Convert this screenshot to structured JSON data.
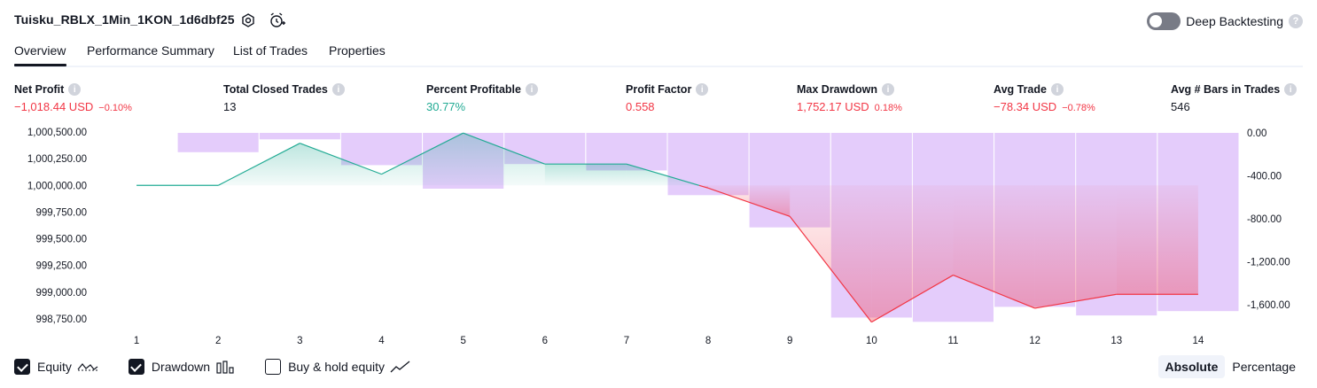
{
  "header": {
    "strategy_name": "Tuisku_RBLX_1Min_1KON_1d6dbf25",
    "deep_backtesting_label": "Deep Backtesting"
  },
  "tabs": [
    {
      "label": "Overview",
      "active": true
    },
    {
      "label": "Performance Summary",
      "active": false
    },
    {
      "label": "List of Trades",
      "active": false
    },
    {
      "label": "Properties",
      "active": false
    }
  ],
  "metrics": [
    {
      "title": "Net Profit",
      "value": "−1,018.44 USD",
      "pct": "−0.10%",
      "tone": "neg"
    },
    {
      "title": "Total Closed Trades",
      "value": "13",
      "pct": "",
      "tone": "neu"
    },
    {
      "title": "Percent Profitable",
      "value": "30.77%",
      "pct": "",
      "tone": "pos"
    },
    {
      "title": "Profit Factor",
      "value": "0.558",
      "pct": "",
      "tone": "neg"
    },
    {
      "title": "Max Drawdown",
      "value": "1,752.17 USD",
      "pct": "0.18%",
      "tone": "neg"
    },
    {
      "title": "Avg Trade",
      "value": "−78.34 USD",
      "pct": "−0.78%",
      "tone": "neg"
    },
    {
      "title": "Avg # Bars in Trades",
      "value": "546",
      "pct": "",
      "tone": "neu"
    }
  ],
  "chart_data": {
    "type": "line",
    "categories": [
      "1",
      "2",
      "3",
      "4",
      "5",
      "6",
      "7",
      "8",
      "9",
      "10",
      "11",
      "12",
      "13",
      "14"
    ],
    "x_range": [
      0.5,
      14.5
    ],
    "y_left": {
      "ticks": [
        1000500,
        1000250,
        1000000,
        999750,
        999500,
        999250,
        999000,
        998750
      ],
      "tick_labels": [
        "1,000,500.00",
        "1,000,250.00",
        "1,000,000.00",
        "999,750.00",
        "999,500.00",
        "999,250.00",
        "999,000.00",
        "998,750.00"
      ],
      "range": [
        998750,
        1000500
      ]
    },
    "y_right": {
      "ticks": [
        0,
        -400,
        -800,
        -1200,
        -1600
      ],
      "tick_labels": [
        "0.00",
        "-400.00",
        "-800.00",
        "-1,200.00",
        "-1,600.00"
      ],
      "range": [
        -1650,
        0
      ]
    },
    "series": [
      {
        "name": "Equity",
        "axis": "left",
        "x": [
          1,
          2,
          3,
          4,
          5,
          6,
          7,
          8,
          9,
          10,
          11,
          12,
          13,
          14
        ],
        "values": [
          1000000,
          1000000,
          1000395,
          1000105,
          1000490,
          1000200,
          1000200,
          999975,
          999710,
          998720,
          999160,
          998850,
          998980,
          998980
        ]
      },
      {
        "name": "Drawdown",
        "axis": "right",
        "type": "bar",
        "x": [
          2,
          3,
          4,
          5,
          6,
          7,
          8,
          9,
          10,
          11,
          12,
          13,
          14
        ],
        "values": [
          -180,
          -60,
          -300,
          -520,
          -290,
          -350,
          -580,
          -880,
          -1720,
          -1760,
          -1620,
          -1700,
          -1660
        ]
      }
    ],
    "colors": {
      "equity_up": "#22ab94",
      "equity_down": "#f23645",
      "drawdown_bar": "#e1c7fb",
      "grid": "#f0f3fa"
    },
    "grid": false
  },
  "legend": [
    {
      "label": "Equity",
      "checked": true,
      "icon": "equity-line-icon"
    },
    {
      "label": "Drawdown",
      "checked": true,
      "icon": "drawdown-bars-icon"
    },
    {
      "label": "Buy & hold equity",
      "checked": false,
      "icon": "buy-hold-line-icon"
    }
  ],
  "mode": {
    "absolute_label": "Absolute",
    "percentage_label": "Percentage",
    "selected": "Absolute"
  }
}
